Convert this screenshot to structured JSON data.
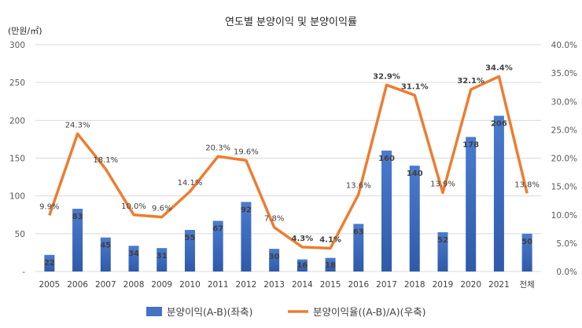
{
  "chart_data": {
    "type": "bar+line",
    "title": "연도별 분양이익 및 분양이익률",
    "y_left_unit": "(만원/㎡)",
    "categories": [
      "2005",
      "2006",
      "2007",
      "2008",
      "2009",
      "2010",
      "2011",
      "2012",
      "2013",
      "2014",
      "2015",
      "2016",
      "2017",
      "2018",
      "2019",
      "2020",
      "2021",
      "전체"
    ],
    "y_left_ticks": [
      "-",
      "50",
      "100",
      "150",
      "200",
      "250",
      "300"
    ],
    "y_right_ticks": [
      "0.0%",
      "5.0%",
      "10.0%",
      "15.0%",
      "20.0%",
      "25.0%",
      "30.0%",
      "35.0%",
      "40.0%"
    ],
    "ylim_left": [
      0,
      300
    ],
    "ylim_right": [
      0,
      40
    ],
    "grid": true,
    "legend_position": "bottom",
    "series": [
      {
        "name": "분양이익(A-B)(좌축)",
        "type": "bar",
        "axis": "left",
        "color": "#4472C4",
        "values": [
          22,
          83,
          45,
          34,
          31,
          55,
          67,
          92,
          30,
          16,
          18,
          63,
          160,
          140,
          52,
          178,
          206,
          50
        ],
        "labels": [
          "22",
          "83",
          "45",
          "34",
          "31",
          "55",
          "67",
          "92",
          "30",
          "16",
          "18",
          "63",
          "160",
          "140",
          "52",
          "178",
          "206",
          "50"
        ]
      },
      {
        "name": "분양이익율((A-B)/A)(우축)",
        "type": "line",
        "axis": "right",
        "color": "#ED7D31",
        "values": [
          9.9,
          24.3,
          18.1,
          10.0,
          9.6,
          14.1,
          20.3,
          19.6,
          7.8,
          4.3,
          4.1,
          13.6,
          32.9,
          31.1,
          13.9,
          32.1,
          34.4,
          13.8
        ],
        "labels": [
          "9.9%",
          "24.3%",
          "18.1%",
          "10.0%",
          "9.6%",
          "14.1%",
          "20.3%",
          "19.6%",
          "7.8%",
          "4.3%",
          "4.1%",
          "13.6%",
          "32.9%",
          "31.1%",
          "13.9%",
          "32.1%",
          "34.4%",
          "13.8%"
        ],
        "label_colors": [
          "#404040",
          "#404040",
          "#404040",
          "#404040",
          "#404040",
          "#404040",
          "#404040",
          "#404040",
          "#404040",
          "#2E75B6",
          "#2E75B6",
          "#404040",
          "#C00000",
          "#C00000",
          "#404040",
          "#C00000",
          "#C00000",
          "#404040"
        ]
      }
    ]
  }
}
